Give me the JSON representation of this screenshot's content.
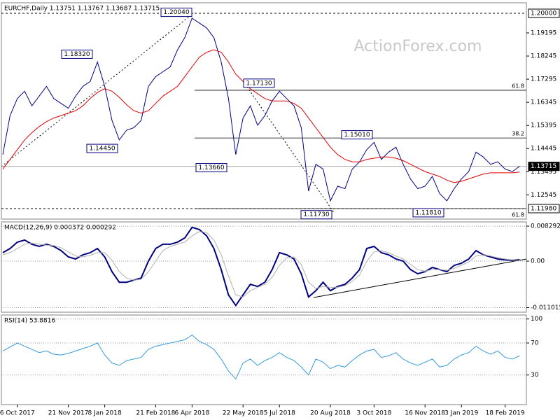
{
  "chart_data": [
    {
      "type": "line",
      "title": "EURCHF,Daily  1.13751 1.13767 1.13687 1.13715",
      "watermark": "ActionForex.com",
      "ylim": [
        1.11549,
        1.20431
      ],
      "yticks": [
        1.19195,
        1.18245,
        1.17295,
        1.16345,
        1.15395,
        1.14445,
        1.13495,
        1.12545
      ],
      "grid": false,
      "series": [
        {
          "color": "#000080",
          "values": [
            1.142,
            1.158,
            1.165,
            1.168,
            1.162,
            1.166,
            1.17,
            1.165,
            1.163,
            1.161,
            1.166,
            1.17,
            1.172,
            1.18,
            1.17,
            1.156,
            1.148,
            1.152,
            1.153,
            1.156,
            1.17,
            1.174,
            1.176,
            1.178,
            1.185,
            1.19,
            1.198,
            1.196,
            1.194,
            1.19,
            1.18,
            1.165,
            1.142,
            1.157,
            1.162,
            1.154,
            1.158,
            1.164,
            1.168,
            1.165,
            1.162,
            1.153,
            1.127,
            1.138,
            1.136,
            1.123,
            1.129,
            1.128,
            1.136,
            1.139,
            1.144,
            1.147,
            1.14,
            1.143,
            1.145,
            1.138,
            1.132,
            1.128,
            1.129,
            1.133,
            1.126,
            1.123,
            1.128,
            1.132,
            1.135,
            1.143,
            1.141,
            1.138,
            1.139,
            1.136,
            1.135,
            1.1372
          ]
        },
        {
          "color": "#e00000",
          "values": [
            1.136,
            1.14,
            1.144,
            1.148,
            1.151,
            1.1535,
            1.1555,
            1.157,
            1.158,
            1.159,
            1.16,
            1.162,
            1.165,
            1.1675,
            1.169,
            1.168,
            1.1655,
            1.1625,
            1.16,
            1.159,
            1.16,
            1.163,
            1.166,
            1.168,
            1.17,
            1.174,
            1.178,
            1.182,
            1.184,
            1.185,
            1.184,
            1.18,
            1.175,
            1.172,
            1.169,
            1.167,
            1.165,
            1.164,
            1.164,
            1.164,
            1.163,
            1.161,
            1.157,
            1.153,
            1.149,
            1.145,
            1.142,
            1.14,
            1.139,
            1.139,
            1.14,
            1.1405,
            1.141,
            1.141,
            1.1405,
            1.1395,
            1.138,
            1.1365,
            1.135,
            1.134,
            1.133,
            1.1315,
            1.1305,
            1.131,
            1.132,
            1.133,
            1.134,
            1.1345,
            1.1345,
            1.1345,
            1.1345,
            1.1348
          ]
        }
      ],
      "levels": [
        {
          "value": 1.2,
          "label": "1.20000",
          "line": "dashed",
          "fill": "#ffffff"
        },
        {
          "value": 1.1198,
          "label": "1.11980",
          "line": "dashed",
          "fill": "#ffffff"
        },
        {
          "value": 1.13715,
          "label": "1.13715",
          "line": "solid",
          "fill": "#000000"
        }
      ],
      "fib": [
        {
          "value": 1.1684,
          "label": "61.8"
        },
        {
          "value": 1.1488,
          "label": "38.2"
        },
        {
          "value": 1.1198,
          "label": "61.8"
        }
      ],
      "annotations": [
        {
          "value": 1.2004,
          "label": "1.20040"
        },
        {
          "value": 1.1832,
          "label": "1.18320"
        },
        {
          "value": 1.1445,
          "label": "1.14450"
        },
        {
          "value": 1.1366,
          "label": "1.13660"
        },
        {
          "value": 1.1713,
          "label": "1.17130"
        },
        {
          "value": 1.1501,
          "label": "1.15010"
        },
        {
          "value": 1.1173,
          "label": "1.11730"
        },
        {
          "value": 1.1181,
          "label": "1.11810"
        }
      ]
    },
    {
      "type": "line",
      "title": "MACD(12,26,9) 0.000372 0.000292",
      "ylim": [
        -0.0121,
        0.0093
      ],
      "yticks": [
        0.008292,
        {
          "value": 0,
          "label": "0.00"
        },
        -0.011015
      ],
      "grid": true,
      "series": [
        {
          "color": "#000080",
          "width": 2,
          "values": [
            0.002,
            0.003,
            0.0045,
            0.005,
            0.004,
            0.0035,
            0.004,
            0.0035,
            0.0025,
            0.001,
            0.0005,
            0.0015,
            0.002,
            0.003,
            0.001,
            -0.0025,
            -0.005,
            -0.005,
            -0.0045,
            -0.004,
            0.0,
            0.003,
            0.004,
            0.004,
            0.0045,
            0.0055,
            0.008,
            0.0075,
            0.006,
            0.003,
            -0.002,
            -0.008,
            -0.0105,
            -0.008,
            -0.0055,
            -0.006,
            -0.005,
            -0.002,
            0.002,
            0.0015,
            0.0005,
            -0.003,
            -0.0085,
            -0.007,
            -0.005,
            -0.007,
            -0.006,
            -0.0055,
            -0.004,
            -0.002,
            0.003,
            0.0035,
            0.002,
            0.0015,
            0.0005,
            0.0,
            -0.002,
            -0.003,
            -0.0025,
            -0.0015,
            -0.002,
            -0.0025,
            -0.001,
            -0.0005,
            0.0005,
            0.0025,
            0.0015,
            0.001,
            0.0005,
            0.0003,
            0.0002,
            0.000372
          ]
        },
        {
          "color": "#b0b0b0",
          "width": 1,
          "values": [
            0.0015,
            0.002,
            0.003,
            0.004,
            0.0043,
            0.004,
            0.0038,
            0.0037,
            0.0032,
            0.0022,
            0.0012,
            0.001,
            0.0014,
            0.002,
            0.002,
            0.0002,
            -0.0025,
            -0.004,
            -0.0045,
            -0.0043,
            -0.0025,
            0.0,
            0.0025,
            0.0035,
            0.004,
            0.0045,
            0.006,
            0.007,
            0.0068,
            0.005,
            0.0015,
            -0.0035,
            -0.008,
            -0.0085,
            -0.007,
            -0.0062,
            -0.0055,
            -0.0038,
            -0.001,
            0.0008,
            0.001,
            -0.0008,
            -0.005,
            -0.0065,
            -0.006,
            -0.0062,
            -0.0062,
            -0.0058,
            -0.0048,
            -0.0033,
            0.0,
            0.0022,
            0.0025,
            0.002,
            0.0012,
            0.0005,
            -0.0008,
            -0.002,
            -0.0024,
            -0.002,
            -0.002,
            -0.0022,
            -0.0017,
            -0.001,
            -0.0002,
            0.0012,
            0.0015,
            0.0012,
            0.0008,
            0.0005,
            0.0003,
            0.000292
          ]
        }
      ]
    },
    {
      "type": "line",
      "title": "RSI(14) 53.8816",
      "ylim": [
        -7,
        105
      ],
      "yticks": [
        100,
        70,
        30
      ],
      "grid": true,
      "categories": [
        null,
        null,
        "6 Oct 2017",
        null,
        null,
        null,
        null,
        null,
        null,
        "21 Nov 2017",
        null,
        null,
        null,
        null,
        "8 Jan 2018",
        null,
        null,
        null,
        null,
        null,
        null,
        "21 Feb 2018",
        null,
        null,
        null,
        null,
        "6 Apr 2018",
        null,
        null,
        null,
        null,
        null,
        null,
        "22 May 2018",
        null,
        null,
        null,
        null,
        "5 Jul 2018",
        null,
        null,
        null,
        null,
        null,
        null,
        "20 Aug 2018",
        null,
        null,
        null,
        null,
        null,
        "3 Oct 2018",
        null,
        null,
        null,
        null,
        null,
        null,
        "16 Nov 2018",
        null,
        null,
        null,
        null,
        "3 Jan 2019",
        null,
        null,
        null,
        null,
        null,
        "18 Feb 2019",
        null,
        null
      ],
      "series": [
        {
          "color": "#3399dd",
          "width": 1,
          "values": [
            60,
            65,
            70,
            66,
            62,
            58,
            60,
            56,
            55,
            57,
            60,
            63,
            66,
            70,
            55,
            45,
            42,
            48,
            50,
            52,
            62,
            66,
            68,
            70,
            72,
            74,
            80,
            72,
            68,
            62,
            50,
            35,
            25,
            45,
            50,
            42,
            48,
            52,
            58,
            52,
            48,
            40,
            30,
            50,
            46,
            38,
            42,
            40,
            48,
            55,
            60,
            62,
            52,
            54,
            58,
            50,
            45,
            42,
            46,
            50,
            40,
            42,
            50,
            55,
            58,
            66,
            60,
            56,
            60,
            52,
            50,
            53.8816
          ]
        }
      ]
    }
  ]
}
